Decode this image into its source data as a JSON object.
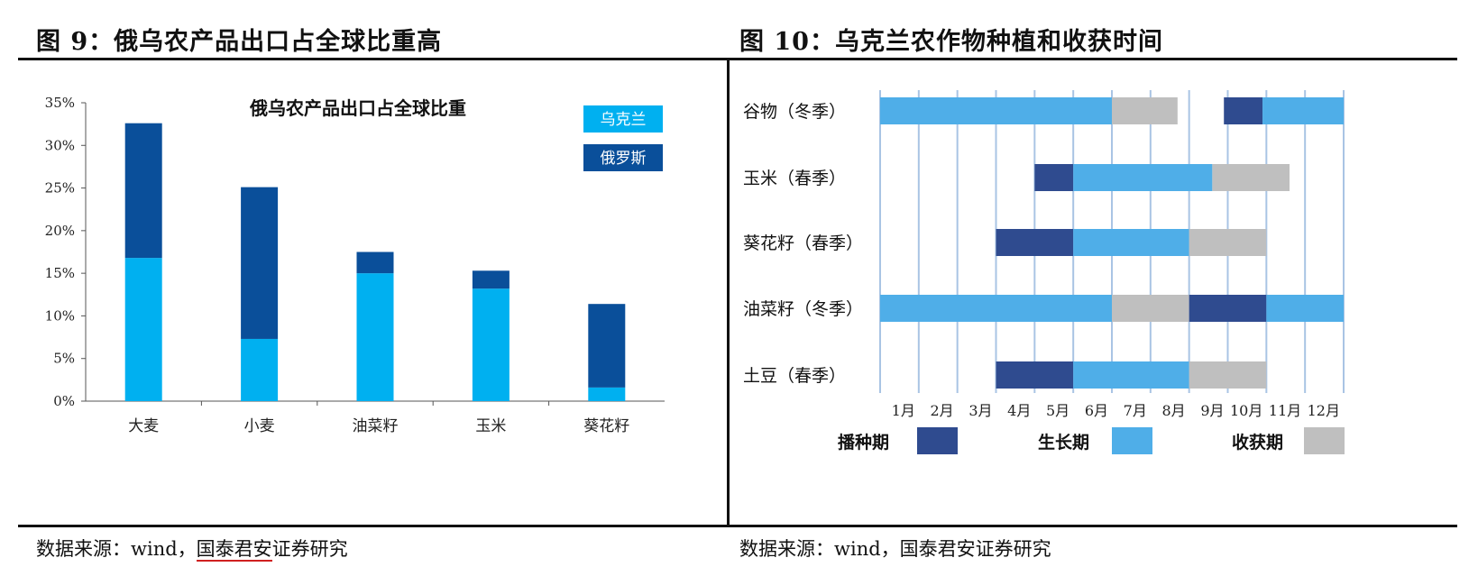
{
  "fig9": {
    "title": "图 9：俄乌农产品出口占全球比重高",
    "source_prefix": "数据来源：wind，",
    "source_org": "国泰君安",
    "source_suffix": "证券研究"
  },
  "fig10": {
    "title": "图 10：乌克兰农作物种植和收获时间",
    "source": "数据来源：wind，国泰君安证券研究"
  },
  "colors": {
    "ukraine": "#00b0f0",
    "russia": "#0a4f9a",
    "sowing": "#2f4b8f",
    "growing": "#4faee8",
    "harvest": "#bfbfbf",
    "month_line": "#a9c4e4"
  },
  "chart_data": [
    {
      "type": "bar",
      "stacked": true,
      "title": "俄乌农产品出口占全球比重",
      "categories": [
        "大麦",
        "小麦",
        "油菜籽",
        "玉米",
        "葵花籽"
      ],
      "series": [
        {
          "name": "乌克兰",
          "color": "#00b0f0",
          "values": [
            16.8,
            7.3,
            15.0,
            13.2,
            1.6
          ]
        },
        {
          "name": "俄罗斯",
          "color": "#0a4f9a",
          "values": [
            15.8,
            17.8,
            2.5,
            2.1,
            9.8
          ]
        }
      ],
      "y_ticks": [
        "0%",
        "5%",
        "10%",
        "15%",
        "20%",
        "25%",
        "30%",
        "35%"
      ],
      "ylim": [
        0,
        35
      ],
      "legend_position": "top-right",
      "grid": false
    },
    {
      "type": "gantt",
      "months": [
        "1月",
        "2月",
        "3月",
        "4月",
        "5月",
        "6月",
        "7月",
        "8月",
        "9月",
        "10月",
        "11月",
        "12月"
      ],
      "rows": [
        {
          "label": "谷物（冬季）",
          "segments": [
            {
              "phase": "growing",
              "start": 0.0,
              "end": 6.0
            },
            {
              "phase": "harvest",
              "start": 6.0,
              "end": 7.7
            },
            {
              "phase": "sowing",
              "start": 8.9,
              "end": 9.9
            },
            {
              "phase": "growing",
              "start": 9.9,
              "end": 12.0
            }
          ]
        },
        {
          "label": "玉米（春季）",
          "segments": [
            {
              "phase": "sowing",
              "start": 4.0,
              "end": 5.0
            },
            {
              "phase": "growing",
              "start": 5.0,
              "end": 8.6
            },
            {
              "phase": "harvest",
              "start": 8.6,
              "end": 10.6
            }
          ]
        },
        {
          "label": "葵花籽（春季）",
          "segments": [
            {
              "phase": "sowing",
              "start": 3.0,
              "end": 5.0
            },
            {
              "phase": "growing",
              "start": 5.0,
              "end": 8.0
            },
            {
              "phase": "harvest",
              "start": 8.0,
              "end": 10.0
            }
          ]
        },
        {
          "label": "油菜籽（冬季）",
          "segments": [
            {
              "phase": "growing",
              "start": 0.0,
              "end": 6.0
            },
            {
              "phase": "harvest",
              "start": 6.0,
              "end": 8.0
            },
            {
              "phase": "sowing",
              "start": 8.0,
              "end": 10.0
            },
            {
              "phase": "growing",
              "start": 10.0,
              "end": 12.0
            }
          ]
        },
        {
          "label": "土豆（春季）",
          "segments": [
            {
              "phase": "sowing",
              "start": 3.0,
              "end": 5.0
            },
            {
              "phase": "growing",
              "start": 5.0,
              "end": 8.0
            },
            {
              "phase": "harvest",
              "start": 8.0,
              "end": 10.0
            }
          ]
        }
      ],
      "legend": [
        {
          "phase": "sowing",
          "label": "播种期"
        },
        {
          "phase": "growing",
          "label": "生长期"
        },
        {
          "phase": "harvest",
          "label": "收获期"
        }
      ]
    }
  ]
}
